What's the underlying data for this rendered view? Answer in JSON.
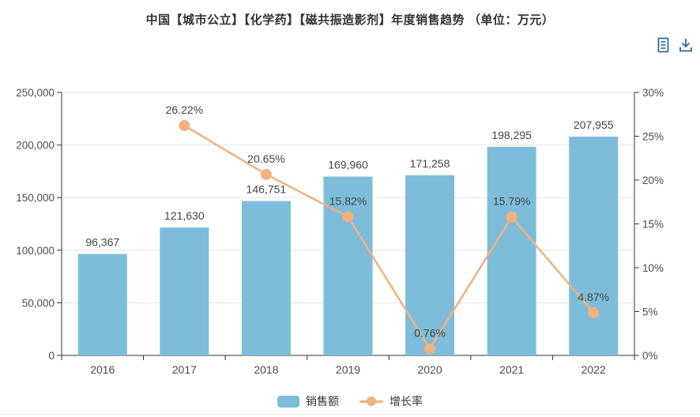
{
  "title": "中国【城市公立】【化学药】【磁共振造影剂】年度销售趋势 （单位：万元）",
  "toolbar": {
    "color": "#2b6797",
    "icons": [
      {
        "name": "data-view-icon"
      },
      {
        "name": "download-icon"
      }
    ]
  },
  "legend": {
    "items": [
      {
        "label": "销售额",
        "marker": "rect",
        "color": "#7dbdda"
      },
      {
        "label": "增长率",
        "marker": "line-dot",
        "color": "#f1b27d"
      }
    ]
  },
  "chart_data": {
    "type": "bar+line",
    "title": "中国【城市公立】【化学药】【磁共振造影剂】年度销售趋势 （单位：万元）",
    "categories": [
      "2016",
      "2017",
      "2018",
      "2019",
      "2020",
      "2021",
      "2022"
    ],
    "series": [
      {
        "name": "销售额",
        "type": "bar",
        "axis": "left",
        "color": "#7dbdda",
        "points": [
          {
            "x": "2016",
            "y": 96367,
            "label": "96,367"
          },
          {
            "x": "2017",
            "y": 121630,
            "label": "121,630"
          },
          {
            "x": "2018",
            "y": 146751,
            "label": "146,751"
          },
          {
            "x": "2019",
            "y": 169960,
            "label": "169,960"
          },
          {
            "x": "2020",
            "y": 171258,
            "label": "171,258"
          },
          {
            "x": "2021",
            "y": 198295,
            "label": "198,295"
          },
          {
            "x": "2022",
            "y": 207955,
            "label": "207,955"
          }
        ]
      },
      {
        "name": "增长率",
        "type": "line",
        "axis": "right",
        "color": "#f1b27d",
        "points": [
          {
            "x": "2017",
            "y": 26.22,
            "label": "26.22%"
          },
          {
            "x": "2018",
            "y": 20.65,
            "label": "20.65%"
          },
          {
            "x": "2019",
            "y": 15.82,
            "label": "15.82%"
          },
          {
            "x": "2020",
            "y": 0.76,
            "label": "0.76%"
          },
          {
            "x": "2021",
            "y": 15.79,
            "label": "15.79%"
          },
          {
            "x": "2022",
            "y": 4.87,
            "label": "4.87%"
          }
        ]
      }
    ],
    "left_axis": {
      "min": 0,
      "max": 250000,
      "ticks": [
        {
          "v": 0,
          "label": "0"
        },
        {
          "v": 50000,
          "label": "50,000"
        },
        {
          "v": 100000,
          "label": "100,000"
        },
        {
          "v": 150000,
          "label": "150,000"
        },
        {
          "v": 200000,
          "label": "200,000"
        },
        {
          "v": 250000,
          "label": "250,000"
        }
      ]
    },
    "right_axis": {
      "min": 0,
      "max": 30,
      "ticks": [
        {
          "v": 0,
          "label": "0%"
        },
        {
          "v": 5,
          "label": "5%"
        },
        {
          "v": 10,
          "label": "10%"
        },
        {
          "v": 15,
          "label": "15%"
        },
        {
          "v": 20,
          "label": "20%"
        },
        {
          "v": 25,
          "label": "25%"
        },
        {
          "v": 30,
          "label": "30%"
        }
      ]
    },
    "grid": true,
    "legend_position": "bottom"
  }
}
